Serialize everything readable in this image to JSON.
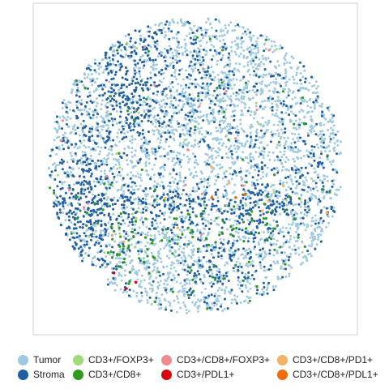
{
  "chart_data": {
    "type": "scatter",
    "title": "",
    "xlabel": "",
    "ylabel": "",
    "grid": false,
    "axes_visible": false,
    "panel_border": true,
    "legend_position": "bottom",
    "legend_columns": 4,
    "series": [
      {
        "name": "Tumor",
        "color": "#9ECAE1",
        "approx_count": 3200,
        "region": "dense throughout the circular tissue section, predominant in upper half and lower-center"
      },
      {
        "name": "Stroma",
        "color": "#1F5FA4",
        "approx_count": 1700,
        "region": "concentrated in left half, upper-left, central horizontal band and lower middle"
      },
      {
        "name": "CD3+/FOXP3+",
        "color": "#A1D97D",
        "approx_count": 40,
        "region": "scattered, mostly middle band"
      },
      {
        "name": "CD3+/CD8+",
        "color": "#2E9A22",
        "approx_count": 170,
        "region": "middle band and lower-center clusters"
      },
      {
        "name": "CD3+/CD8+/FOXP3+",
        "color": "#F08A8E",
        "approx_count": 20,
        "region": "sparse, upper and middle"
      },
      {
        "name": "CD3+/PDL1+",
        "color": "#D7000F",
        "approx_count": 12,
        "region": "lower-left cluster near bottom"
      },
      {
        "name": "CD3+/CD8+/PD1+",
        "color": "#F5B266",
        "approx_count": 10,
        "region": "sparse, middle-right"
      },
      {
        "name": "CD3+/CD8+/PDL1+",
        "color": "#F06A0E",
        "approx_count": 8,
        "region": "middle-right near center band"
      }
    ]
  }
}
